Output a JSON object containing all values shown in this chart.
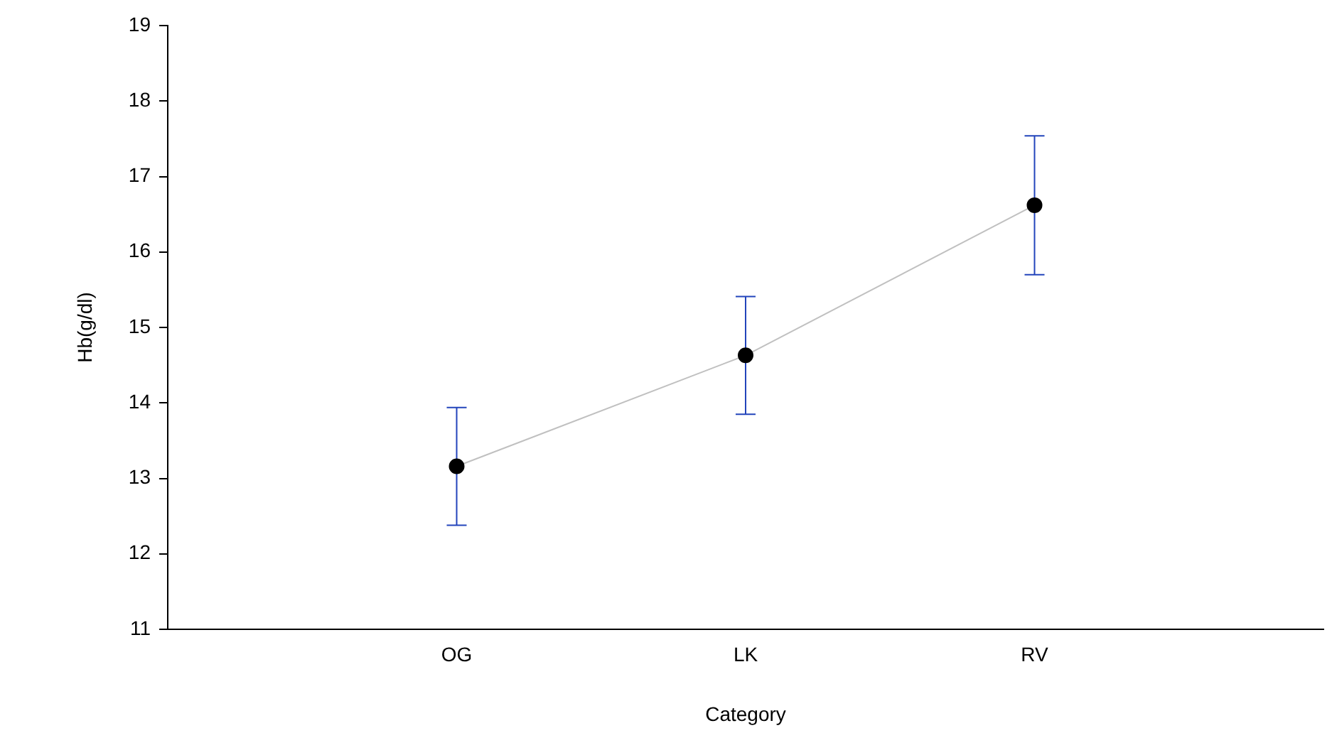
{
  "chart_data": {
    "type": "line",
    "xlabel": "Category",
    "ylabel": "Hb(g/dl)",
    "categories": [
      "OG",
      "LK",
      "RV"
    ],
    "series": [
      {
        "color": "#000000",
        "values": [
          13.16,
          14.63,
          16.62
        ],
        "errors": [
          0.78,
          0.78,
          0.92
        ]
      }
    ],
    "ylim": [
      11,
      19
    ],
    "yticks": [
      11,
      12,
      13,
      14,
      15,
      16,
      17,
      18,
      19
    ],
    "grid": false,
    "legend": false,
    "marker": "circle",
    "line_style": "solid"
  }
}
